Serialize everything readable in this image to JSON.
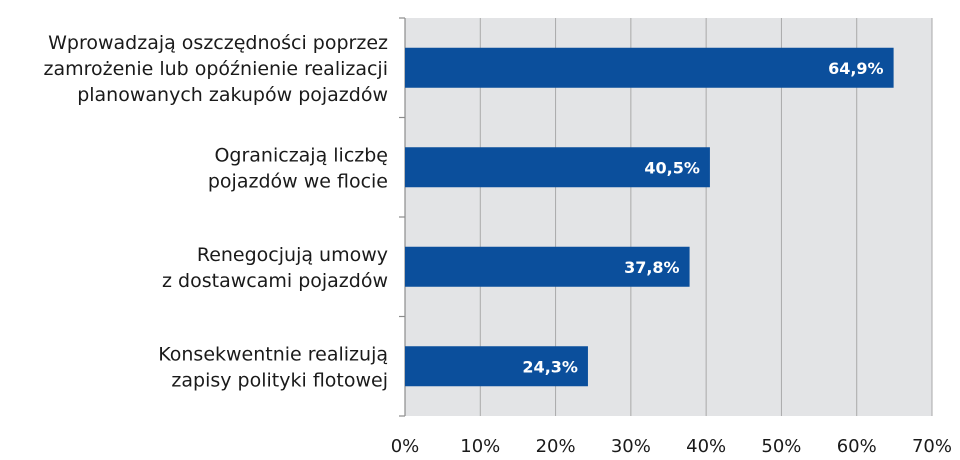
{
  "chart_data": {
    "type": "bar",
    "orientation": "horizontal",
    "categories": [
      [
        "Wprowadzają oszczędności poprzez",
        "zamrożenie lub opóźnienie realizacji",
        "planowanych zakupów pojazdów"
      ],
      [
        "Ograniczają liczbę",
        "pojazdów we flocie"
      ],
      [
        "Renegocjują umowy",
        "z dostawcami pojazdów"
      ],
      [
        "Konsekwentnie realizują",
        "zapisy polityki flotowej"
      ]
    ],
    "values": [
      64.9,
      40.5,
      37.8,
      24.3
    ],
    "value_labels": [
      "64,9%",
      "40,5%",
      "37,8%",
      "24,3%"
    ],
    "xlim": [
      0,
      70
    ],
    "xticks": [
      0,
      10,
      20,
      30,
      40,
      50,
      60,
      70
    ],
    "xtick_labels": [
      "0%",
      "10%",
      "20%",
      "30%",
      "40%",
      "50%",
      "60%",
      "70%"
    ],
    "grid": true,
    "colors": {
      "bar": "#0b4f9c",
      "plot_background": "#e3e4e6",
      "grid": "#a9a9a9"
    }
  }
}
